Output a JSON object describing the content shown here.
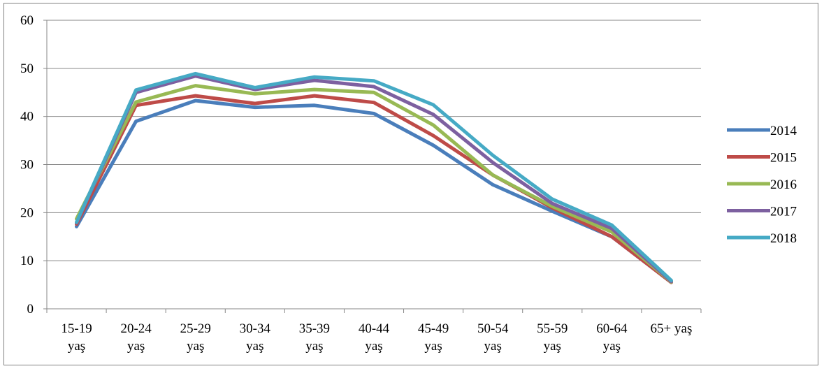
{
  "chart_data": {
    "type": "line",
    "title": "",
    "xlabel": "",
    "ylabel": "",
    "ylim": [
      0,
      60
    ],
    "yticks": [
      "0",
      "10",
      "20",
      "30",
      "40",
      "50",
      "60"
    ],
    "grid": true,
    "legend_position": "right",
    "categories": [
      [
        "15-19",
        "yaş"
      ],
      [
        "20-24",
        "yaş"
      ],
      [
        "25-29",
        "yaş"
      ],
      [
        "30-34",
        "yaş"
      ],
      [
        "35-39",
        "yaş"
      ],
      [
        "40-44",
        "yaş"
      ],
      [
        "45-49",
        "yaş"
      ],
      [
        "50-54",
        "yaş"
      ],
      [
        "55-59",
        "yaş"
      ],
      [
        "60-64",
        "yaş"
      ],
      [
        "65+ yaş"
      ]
    ],
    "series": [
      {
        "name": "2014",
        "color": "#4A7EBB",
        "values": [
          17.1,
          39.0,
          43.3,
          41.9,
          42.3,
          40.6,
          34.0,
          25.8,
          20.3,
          15.0,
          5.5
        ]
      },
      {
        "name": "2015",
        "color": "#BE4B48",
        "values": [
          17.6,
          42.3,
          44.3,
          42.7,
          44.3,
          42.9,
          36.0,
          27.8,
          21.0,
          15.0,
          5.5
        ]
      },
      {
        "name": "2016",
        "color": "#98B954",
        "values": [
          18.7,
          43.0,
          46.4,
          44.7,
          45.6,
          45.0,
          38.2,
          27.8,
          21.3,
          16.0,
          5.6
        ]
      },
      {
        "name": "2017",
        "color": "#7D60A0",
        "values": [
          17.9,
          45.0,
          48.4,
          45.6,
          47.5,
          46.2,
          40.4,
          30.4,
          21.9,
          16.7,
          5.7
        ]
      },
      {
        "name": "2018",
        "color": "#46AAC5",
        "values": [
          18.0,
          45.5,
          48.9,
          46.0,
          48.2,
          47.4,
          42.4,
          31.9,
          22.8,
          17.4,
          5.9
        ]
      }
    ]
  }
}
